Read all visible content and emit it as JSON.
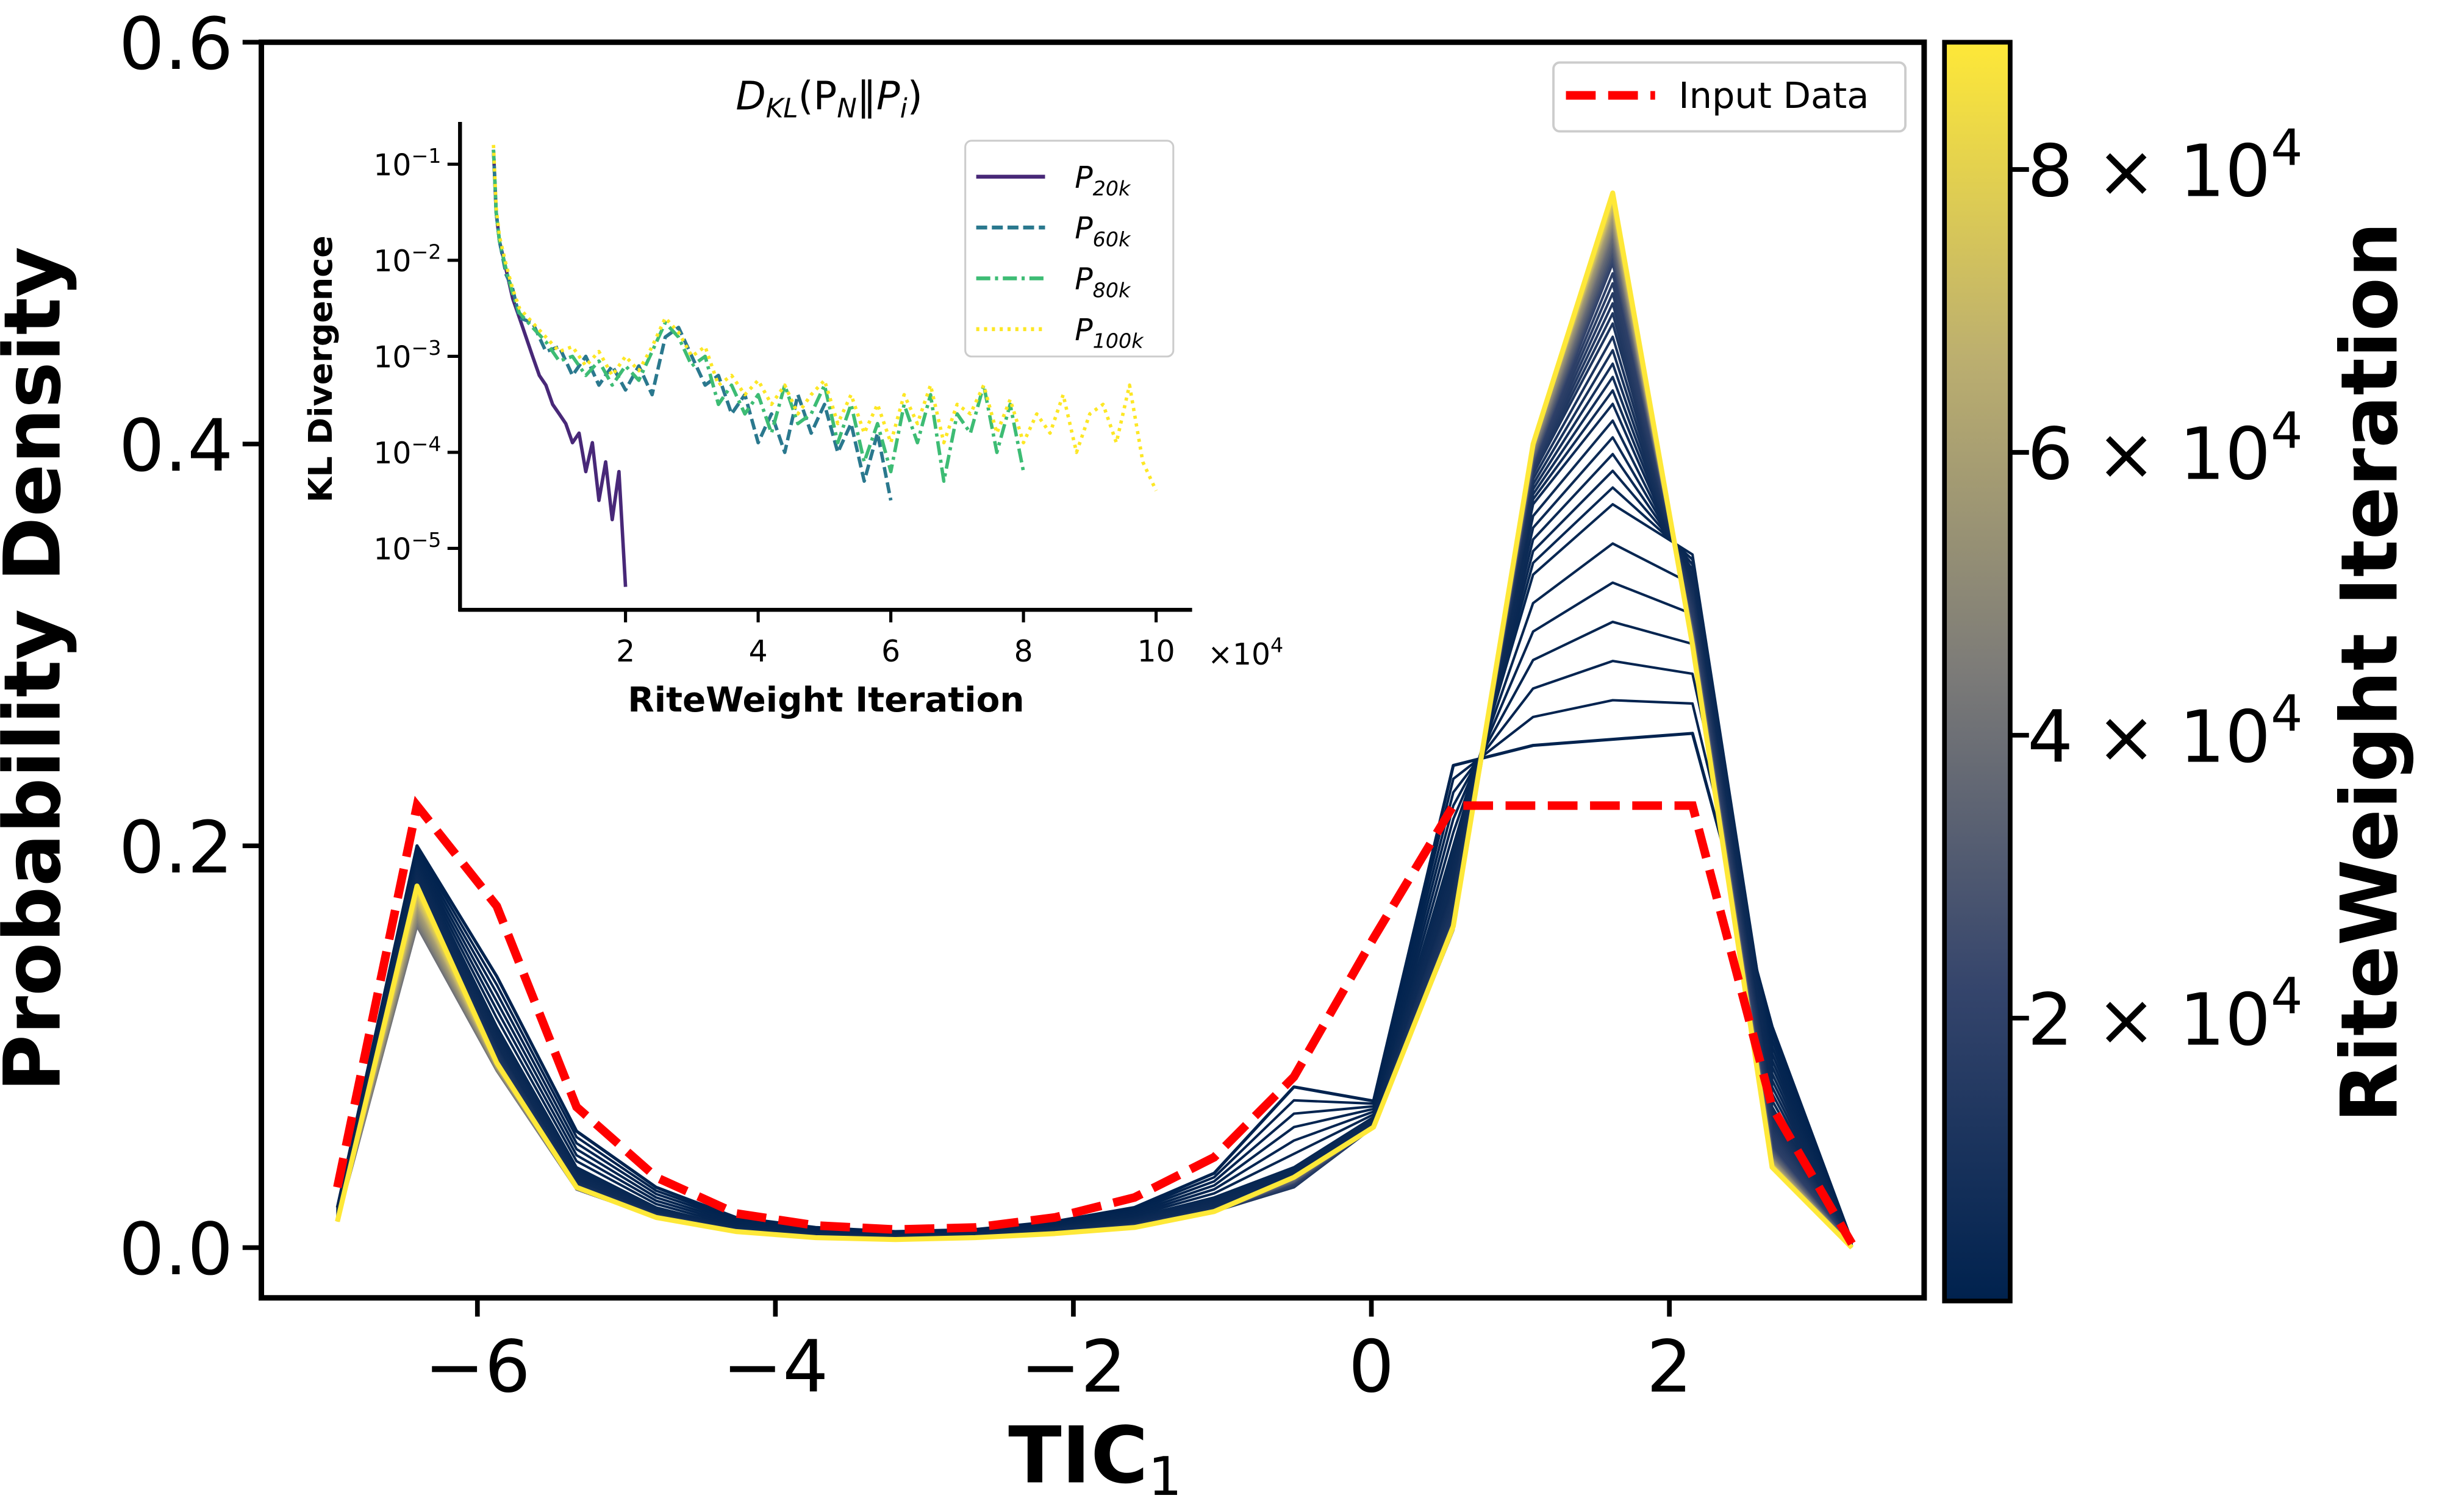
{
  "chart_data": [
    {
      "id": "main",
      "type": "line",
      "title": "",
      "xlabel": "TIC",
      "xlabel_sub": "1",
      "ylabel": "Probability Density",
      "xlim": [
        -7.45,
        3.71
      ],
      "ylim": [
        -0.025,
        0.6
      ],
      "xticks": [
        -6,
        -4,
        -2,
        0,
        2
      ],
      "xtick_labels": [
        "−6",
        "−4",
        "−2",
        "0",
        "2"
      ],
      "yticks": [
        0.0,
        0.2,
        0.4,
        0.6
      ],
      "ytick_labels": [
        "0.0",
        "0.2",
        "0.4",
        "0.6"
      ],
      "grid": false,
      "x": [
        -6.94,
        -6.405,
        -5.87,
        -5.335,
        -4.8,
        -4.265,
        -3.73,
        -3.195,
        -2.66,
        -2.125,
        -1.59,
        -1.055,
        -0.52,
        0.015,
        0.55,
        1.085,
        1.62,
        2.155,
        2.69,
        3.225
      ],
      "input_data": {
        "name": "Input Data",
        "color": "#ff0000",
        "values": [
          0.03,
          0.22,
          0.17,
          0.07,
          0.035,
          0.017,
          0.011,
          0.009,
          0.01,
          0.015,
          0.025,
          0.045,
          0.085,
          0.154,
          0.22,
          0.22,
          0.22,
          0.22,
          0.07,
          0.002
        ]
      },
      "series": [
        {
          "iteration": 500,
          "values": [
            0.02,
            0.2,
            0.135,
            0.058,
            0.03,
            0.015,
            0.01,
            0.008,
            0.009,
            0.013,
            0.02,
            0.037,
            0.08,
            0.073,
            0.24,
            0.25,
            0.253,
            0.256,
            0.11,
            0.003
          ]
        },
        {
          "iteration": 3000,
          "values": [
            0.018,
            0.19,
            0.11,
            0.04,
            0.02,
            0.01,
            0.007,
            0.006,
            0.007,
            0.01,
            0.015,
            0.025,
            0.04,
            0.065,
            0.2,
            0.335,
            0.37,
            0.345,
            0.09,
            0.003
          ]
        },
        {
          "iteration": 6000,
          "values": [
            0.016,
            0.18,
            0.1,
            0.033,
            0.017,
            0.009,
            0.006,
            0.005,
            0.006,
            0.008,
            0.012,
            0.02,
            0.033,
            0.06,
            0.18,
            0.37,
            0.42,
            0.33,
            0.07,
            0.002
          ]
        },
        {
          "iteration": 12000,
          "values": [
            0.015,
            0.172,
            0.095,
            0.03,
            0.016,
            0.008,
            0.005,
            0.004,
            0.005,
            0.007,
            0.011,
            0.018,
            0.03,
            0.06,
            0.165,
            0.385,
            0.46,
            0.32,
            0.06,
            0.001
          ]
        },
        {
          "iteration": 20000,
          "values": [
            0.014,
            0.165,
            0.09,
            0.029,
            0.015,
            0.008,
            0.005,
            0.004,
            0.005,
            0.007,
            0.01,
            0.018,
            0.032,
            0.06,
            0.16,
            0.39,
            0.49,
            0.31,
            0.05,
            0.001
          ]
        },
        {
          "iteration": 40000,
          "values": [
            0.013,
            0.16,
            0.088,
            0.029,
            0.015,
            0.008,
            0.005,
            0.004,
            0.005,
            0.007,
            0.01,
            0.018,
            0.034,
            0.06,
            0.158,
            0.395,
            0.505,
            0.305,
            0.045,
            0.0
          ]
        },
        {
          "iteration": 60000,
          "values": [
            0.013,
            0.17,
            0.09,
            0.03,
            0.015,
            0.008,
            0.005,
            0.004,
            0.005,
            0.007,
            0.01,
            0.018,
            0.035,
            0.06,
            0.158,
            0.4,
            0.515,
            0.3,
            0.042,
            0.0
          ]
        },
        {
          "iteration": 90000,
          "values": [
            0.013,
            0.18,
            0.092,
            0.03,
            0.015,
            0.008,
            0.005,
            0.004,
            0.005,
            0.007,
            0.01,
            0.018,
            0.035,
            0.06,
            0.16,
            0.4,
            0.525,
            0.3,
            0.04,
            0.0
          ]
        }
      ],
      "legend": {
        "position": "top-right",
        "entries": [
          "Input Data"
        ]
      }
    },
    {
      "id": "inset",
      "type": "line",
      "title_main": "D",
      "title_sub1": "KL",
      "title_mid": "(P",
      "title_sub2": "N",
      "title_mid2": "‖P",
      "title_sub3": "i",
      "title_end": ")",
      "xlabel": "RiteWeight Iteration",
      "ylabel": "KL Divergence",
      "xscale_label": "×10",
      "xscale_exp": "4",
      "yscale": "log",
      "xlim": [
        0,
        10.5
      ],
      "ylim_log10": [
        -5.64,
        -0.56
      ],
      "xticks": [
        2,
        4,
        6,
        8,
        10
      ],
      "xtick_labels": [
        "2",
        "4",
        "6",
        "8",
        "10"
      ],
      "yticks_log10": [
        -1,
        -2,
        -3,
        -4,
        -5
      ],
      "ytick_labels": [
        {
          "base": "10",
          "exp": "−1"
        },
        {
          "base": "10",
          "exp": "−2"
        },
        {
          "base": "10",
          "exp": "−3"
        },
        {
          "base": "10",
          "exp": "−4"
        },
        {
          "base": "10",
          "exp": "−5"
        }
      ],
      "x_grid_1e4": [
        0.01,
        0.05,
        0.1,
        0.2,
        0.3,
        0.4,
        0.6,
        0.8,
        1.0,
        1.2,
        1.4,
        1.6,
        1.8,
        2.0,
        2.2,
        2.4,
        2.6,
        2.8,
        3.0,
        3.2,
        3.4,
        3.6,
        3.8,
        4.0,
        4.2,
        4.4,
        4.6,
        4.8,
        5.0,
        5.2,
        5.4,
        5.6,
        5.8,
        6.0,
        6.2,
        6.4,
        6.6,
        6.8,
        7.0,
        7.2,
        7.4,
        7.6,
        7.8,
        8.0,
        8.2,
        8.4,
        8.6,
        8.8,
        9.0,
        9.2,
        9.4,
        9.6,
        9.8,
        10.0
      ],
      "series": [
        {
          "name": "P",
          "sub": "20k",
          "color": "#482878",
          "dash": "solid",
          "x_1e4": [
            0.01,
            0.05,
            0.1,
            0.2,
            0.3,
            0.4,
            0.5,
            0.6,
            0.7,
            0.8,
            0.9,
            1.0,
            1.1,
            1.2,
            1.3,
            1.4,
            1.5,
            1.6,
            1.7,
            1.8,
            1.9,
            2.0
          ],
          "log10_values": [
            -0.85,
            -1.5,
            -1.8,
            -2.1,
            -2.4,
            -2.6,
            -2.8,
            -3.0,
            -3.2,
            -3.3,
            -3.5,
            -3.6,
            -3.7,
            -3.9,
            -3.8,
            -4.2,
            -3.9,
            -4.5,
            -4.1,
            -4.7,
            -4.2,
            -5.4
          ]
        },
        {
          "name": "P",
          "sub": "60k",
          "color": "#2a788e",
          "dash": "dashed",
          "log10_values": [
            -0.85,
            -1.5,
            -1.8,
            -2.15,
            -2.3,
            -2.6,
            -2.65,
            -2.95,
            -2.9,
            -3.2,
            -3.0,
            -3.3,
            -3.1,
            -3.35,
            -3.1,
            -3.4,
            -2.8,
            -2.7,
            -3.0,
            -3.3,
            -3.2,
            -3.6,
            -3.4,
            -3.9,
            -3.6,
            -4.0,
            -3.4,
            -3.8,
            -3.5,
            -4.0,
            -3.7,
            -4.3,
            -3.8,
            -4.5
          ]
        },
        {
          "name": "P",
          "sub": "80k",
          "color": "#3dbc74",
          "dash": "dashdot",
          "log10_values": [
            -0.85,
            -1.5,
            -1.8,
            -2.1,
            -2.35,
            -2.55,
            -2.7,
            -2.85,
            -3.05,
            -3.0,
            -3.2,
            -3.05,
            -3.3,
            -3.1,
            -3.25,
            -2.95,
            -2.65,
            -2.8,
            -3.1,
            -3.0,
            -3.5,
            -3.3,
            -3.6,
            -3.4,
            -3.8,
            -3.3,
            -3.7,
            -3.6,
            -3.3,
            -3.9,
            -3.5,
            -4.1,
            -3.7,
            -4.2,
            -3.5,
            -3.9,
            -3.4,
            -4.3,
            -3.6,
            -3.8,
            -3.3,
            -4.0,
            -3.5,
            -4.2
          ]
        },
        {
          "name": "P",
          "sub": "100k",
          "color": "#fde725",
          "dash": "dotted",
          "log10_values": [
            -0.8,
            -1.45,
            -1.75,
            -2.05,
            -2.3,
            -2.5,
            -2.65,
            -2.8,
            -2.95,
            -2.9,
            -3.1,
            -2.95,
            -3.2,
            -3.0,
            -3.15,
            -2.9,
            -2.6,
            -2.75,
            -3.0,
            -2.9,
            -3.3,
            -3.2,
            -3.4,
            -3.25,
            -3.5,
            -3.3,
            -3.6,
            -3.4,
            -3.25,
            -3.7,
            -3.4,
            -3.8,
            -3.5,
            -3.9,
            -3.4,
            -3.7,
            -3.3,
            -3.9,
            -3.5,
            -3.6,
            -3.3,
            -3.8,
            -3.45,
            -3.9,
            -3.6,
            -3.8,
            -3.4,
            -4.0,
            -3.6,
            -3.5,
            -3.9,
            -3.3,
            -4.1,
            -4.4
          ]
        }
      ],
      "legend": {
        "position": "top-right"
      }
    }
  ],
  "colorbar": {
    "label": "RiteWeight Iteration",
    "range": [
      0,
      89000
    ],
    "colormap": [
      "#00224e",
      "#35456c",
      "#7c7b78",
      "#bcaf6f",
      "#fee838"
    ],
    "ticks": [
      20000,
      40000,
      60000,
      80000
    ],
    "tick_labels": [
      {
        "mant": "2",
        "times": " × ",
        "base": "10",
        "exp": "4"
      },
      {
        "mant": "4",
        "times": " × ",
        "base": "10",
        "exp": "4"
      },
      {
        "mant": "6",
        "times": " × ",
        "base": "10",
        "exp": "4"
      },
      {
        "mant": "8",
        "times": " × ",
        "base": "10",
        "exp": "4"
      }
    ]
  }
}
